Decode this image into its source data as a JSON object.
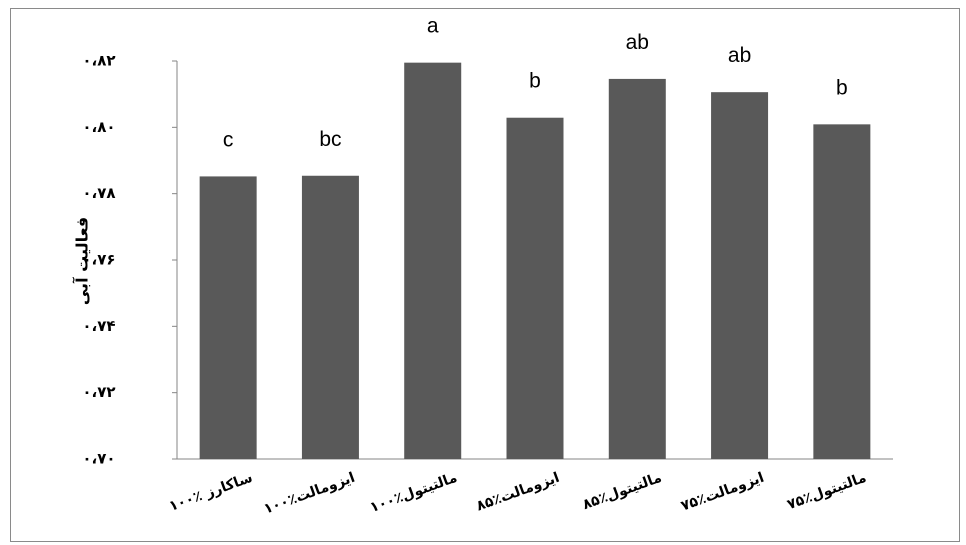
{
  "chart_data": {
    "type": "bar",
    "title": "",
    "xlabel": "",
    "ylabel": "فعالیت آبی",
    "categories": [
      "۱۰۰٪ ساکارز",
      "۱۰۰٪ایزومالت",
      "۱۰۰٪مالتیتول",
      "۸۵٪ایزومالت",
      "۸۵٪مالتیتول",
      "۷۵٪ایزومالت",
      "۷۵٪مالتیتول"
    ],
    "values": [
      0.7852,
      0.7854,
      0.8195,
      0.8029,
      0.8146,
      0.8106,
      0.8009
    ],
    "significance_letters": [
      "c",
      "bc",
      "a",
      "b",
      "ab",
      "ab",
      "b"
    ],
    "ylim": [
      0.7,
      0.82
    ],
    "yticks": [
      0.7,
      0.72,
      0.74,
      0.76,
      0.78,
      0.8,
      0.82
    ],
    "ytick_labels": [
      "۰،۷۰",
      "۰،۷۲",
      "۰،۷۴",
      "۰،۷۶",
      "۰،۷۸",
      "۰،۸۰",
      "۰،۸۲"
    ],
    "grid": false,
    "legend": "none",
    "bar_color": "#595959"
  }
}
